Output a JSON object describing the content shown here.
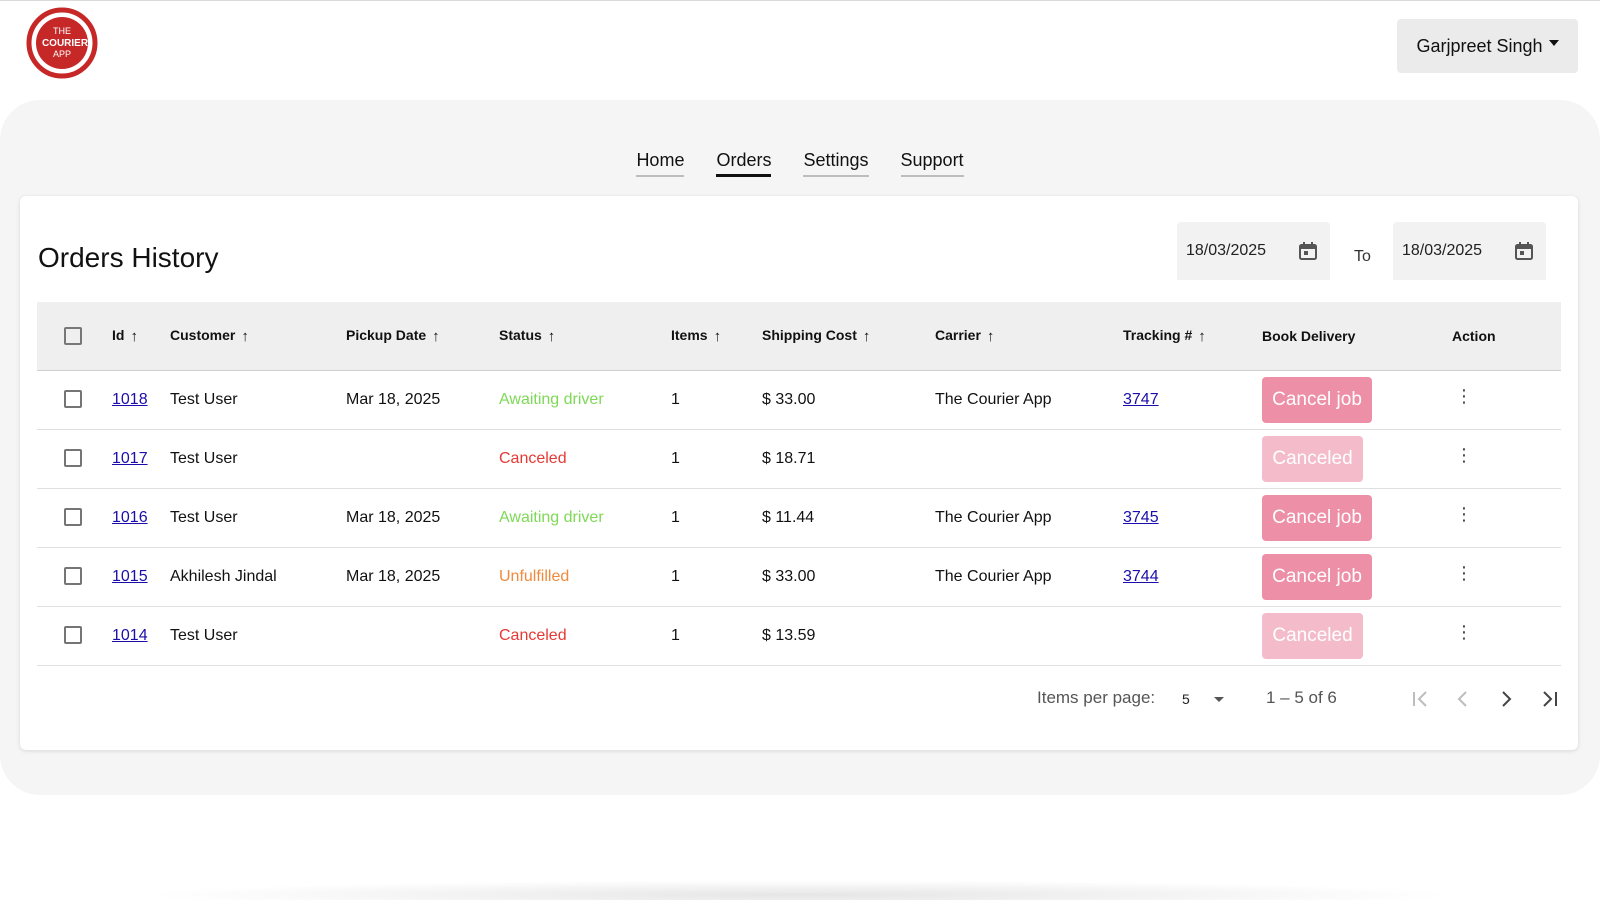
{
  "brand": {
    "logo_line1": "THE",
    "logo_line2": "COURIER",
    "logo_line3": "APP",
    "accent": "#c62828"
  },
  "user_menu": {
    "name": "Garjpreet Singh"
  },
  "nav": {
    "items": [
      {
        "label": "Home",
        "active": false
      },
      {
        "label": "Orders",
        "active": true
      },
      {
        "label": "Settings",
        "active": false
      },
      {
        "label": "Support",
        "active": false
      }
    ]
  },
  "orders": {
    "title": "Orders History",
    "date_from": "18/03/2025",
    "date_to": "18/03/2025",
    "to_label": "To",
    "columns": {
      "id": "Id",
      "customer": "Customer",
      "pickup_date": "Pickup Date",
      "status": "Status",
      "items": "Items",
      "shipping_cost": "Shipping Cost",
      "carrier": "Carrier",
      "tracking": "Tracking #",
      "book_delivery": "Book Delivery",
      "action": "Action"
    },
    "rows": [
      {
        "id": "1018",
        "customer": "Test User",
        "pickup_date": "Mar 18, 2025",
        "status": "Awaiting driver",
        "items": "1",
        "shipping_cost": "$ 33.00",
        "carrier": "The Courier App",
        "tracking": "3747",
        "button": "Cancel job"
      },
      {
        "id": "1017",
        "customer": "Test User",
        "pickup_date": "",
        "status": "Canceled",
        "items": "1",
        "shipping_cost": "$ 18.71",
        "carrier": "",
        "tracking": "",
        "button": "Canceled"
      },
      {
        "id": "1016",
        "customer": "Test User",
        "pickup_date": "Mar 18, 2025",
        "status": "Awaiting driver",
        "items": "1",
        "shipping_cost": "$ 11.44",
        "carrier": "The Courier App",
        "tracking": "3745",
        "button": "Cancel job"
      },
      {
        "id": "1015",
        "customer": "Akhilesh Jindal",
        "pickup_date": "Mar 18, 2025",
        "status": "Unfulfilled",
        "items": "1",
        "shipping_cost": "$ 33.00",
        "carrier": "The Courier App",
        "tracking": "3744",
        "button": "Cancel job"
      },
      {
        "id": "1014",
        "customer": "Test User",
        "pickup_date": "",
        "status": "Canceled",
        "items": "1",
        "shipping_cost": "$ 13.59",
        "carrier": "",
        "tracking": "",
        "button": "Canceled"
      }
    ],
    "status_colors": {
      "awaiting": "#7ed957",
      "canceled": "#e53935",
      "unfulfilled": "#f08a3c"
    }
  },
  "paginator": {
    "items_per_page_label": "Items per page:",
    "items_per_page": "5",
    "range": "1 – 5 of 6"
  }
}
